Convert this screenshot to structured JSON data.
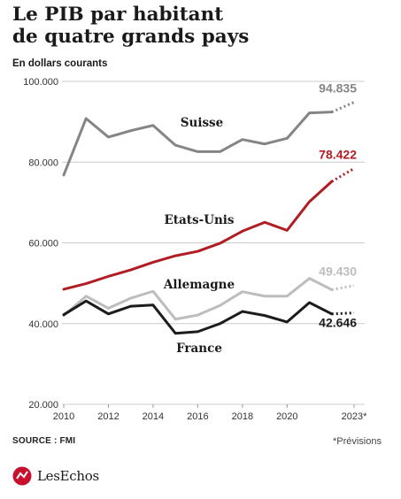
{
  "header": {
    "title_line1": "Le PIB par habitant",
    "title_line2": "de quatre grands pays",
    "subtitle": "En dollars courants"
  },
  "footer": {
    "source": "SOURCE : FMI",
    "note": "*Prévisions",
    "brand": "LesEchos"
  },
  "colors": {
    "suisse": "#858585",
    "etats_unis": "#b01e23",
    "allemagne": "#bdbdbd",
    "france": "#1c1c1c",
    "grid": "#cccccc",
    "axis_text": "#333333"
  },
  "chart_data": {
    "type": "line",
    "x": [
      2010,
      2011,
      2012,
      2013,
      2014,
      2015,
      2016,
      2017,
      2018,
      2019,
      2020,
      2021,
      2022,
      2023
    ],
    "xticks": [
      {
        "x": 2010,
        "label": "2010"
      },
      {
        "x": 2012,
        "label": "2012"
      },
      {
        "x": 2014,
        "label": "2014"
      },
      {
        "x": 2016,
        "label": "2016"
      },
      {
        "x": 2018,
        "label": "2018"
      },
      {
        "x": 2020,
        "label": "2020"
      },
      {
        "x": 2023,
        "label": "2023*"
      }
    ],
    "yticks": [
      {
        "y": 20000,
        "label": "20.000"
      },
      {
        "y": 40000,
        "label": "40.000"
      },
      {
        "y": 60000,
        "label": "60.000"
      },
      {
        "y": 80000,
        "label": "80.000"
      },
      {
        "y": 100000,
        "label": "100.000"
      }
    ],
    "ylim": [
      20000,
      100000
    ],
    "xlim": [
      2010,
      2023
    ],
    "grid": true,
    "forecast_from": 2022,
    "series": [
      {
        "name": "Suisse",
        "color_key": "suisse",
        "values": [
          76800,
          90800,
          86200,
          87800,
          89100,
          84200,
          82600,
          82600,
          85600,
          84500,
          85900,
          92200,
          92400,
          94835
        ],
        "end_label": "94.835"
      },
      {
        "name": "Etats-Unis",
        "color_key": "etats_unis",
        "values": [
          48500,
          49900,
          51700,
          53300,
          55200,
          56800,
          57900,
          59900,
          62900,
          65100,
          63100,
          70200,
          75200,
          78422
        ],
        "end_label": "78.422"
      },
      {
        "name": "Allemagne",
        "color_key": "allemagne",
        "values": [
          42000,
          46800,
          43800,
          46300,
          48000,
          41100,
          42100,
          44500,
          47900,
          46800,
          46800,
          51200,
          48400,
          49430
        ],
        "end_label": "49.430"
      },
      {
        "name": "France",
        "color_key": "france",
        "values": [
          42200,
          45600,
          42400,
          44300,
          44600,
          37600,
          38000,
          40000,
          43000,
          42000,
          40400,
          45200,
          42400,
          42646
        ],
        "end_label": "42.646"
      }
    ]
  }
}
